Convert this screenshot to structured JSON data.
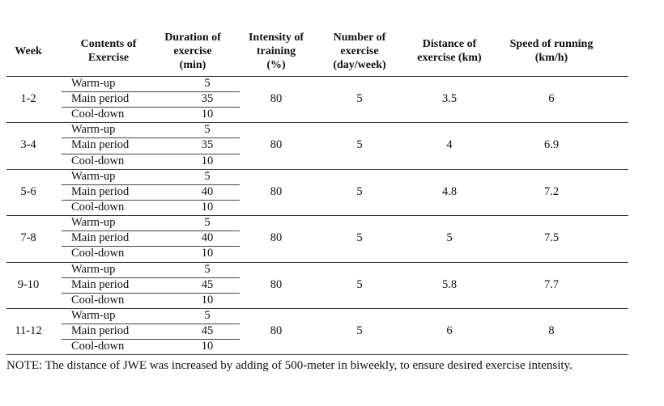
{
  "headers": [
    "Week",
    "Contents of\nExercise",
    "Duration of\nexercise\n(min)",
    "Intensity of\ntraining\n(%)",
    "Number of\nexercise\n(day/week)",
    "Distance of\nexercise (km)",
    "Speed of running\n(km/h)"
  ],
  "rows": [
    {
      "week": "1-2",
      "parts": [
        {
          "name": "Warm-up",
          "min": "5"
        },
        {
          "name": "Main period",
          "min": "35"
        },
        {
          "name": "Cool-down",
          "min": "10"
        }
      ],
      "intensity": "80",
      "number": "5",
      "distance": "3.5",
      "speed": "6"
    },
    {
      "week": "3-4",
      "parts": [
        {
          "name": "Warm-up",
          "min": "5"
        },
        {
          "name": "Main period",
          "min": "35"
        },
        {
          "name": "Cool-down",
          "min": "10"
        }
      ],
      "intensity": "80",
      "number": "5",
      "distance": "4",
      "speed": "6.9"
    },
    {
      "week": "5-6",
      "parts": [
        {
          "name": "Warm-up",
          "min": "5"
        },
        {
          "name": "Main period",
          "min": "40"
        },
        {
          "name": "Cool-down",
          "min": "10"
        }
      ],
      "intensity": "80",
      "number": "5",
      "distance": "4.8",
      "speed": "7.2"
    },
    {
      "week": "7-8",
      "parts": [
        {
          "name": "Warm-up",
          "min": "5"
        },
        {
          "name": "Main period",
          "min": "40"
        },
        {
          "name": "Cool-down",
          "min": "10"
        }
      ],
      "intensity": "80",
      "number": "5",
      "distance": "5",
      "speed": "7.5"
    },
    {
      "week": "9-10",
      "parts": [
        {
          "name": "Warm-up",
          "min": "5"
        },
        {
          "name": "Main period",
          "min": "45"
        },
        {
          "name": "Cool-down",
          "min": "10"
        }
      ],
      "intensity": "80",
      "number": "5",
      "distance": "5.8",
      "speed": "7.7"
    },
    {
      "week": "11-12",
      "parts": [
        {
          "name": "Warm-up",
          "min": "5"
        },
        {
          "name": "Main period",
          "min": "45"
        },
        {
          "name": "Cool-down",
          "min": "10"
        }
      ],
      "intensity": "80",
      "number": "5",
      "distance": "6",
      "speed": "8"
    }
  ],
  "note": "NOTE: The distance of JWE was increased by adding of 500-meter in biweekly, to ensure desired exercise intensity."
}
